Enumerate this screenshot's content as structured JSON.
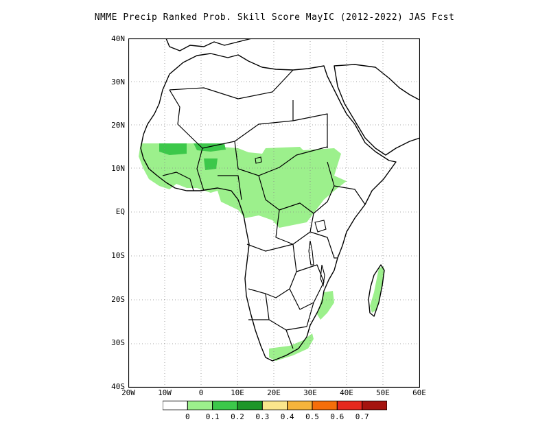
{
  "title": "NMME Precip Ranked Prob. Skill Score MayIC (2012-2022) JAS Fcst",
  "lat_labels": [
    "40N",
    "30N",
    "20N",
    "10N",
    "EQ",
    "10S",
    "20S",
    "30S",
    "40S"
  ],
  "lon_labels": [
    "20W",
    "10W",
    "0",
    "10E",
    "20E",
    "30E",
    "40E",
    "50E",
    "60E"
  ],
  "colorbar": {
    "colors": [
      "#ffffff",
      "#9cf08c",
      "#3cc84a",
      "#1e9628",
      "#fae68c",
      "#f5b43c",
      "#f56e0a",
      "#e6281e",
      "#a5140f"
    ],
    "labels": [
      "0",
      "0.1",
      "0.2",
      "0.3",
      "0.4",
      "0.5",
      "0.6",
      "0.7"
    ]
  },
  "map": {
    "lon_range": [
      -20,
      60
    ],
    "lat_range": [
      -40,
      40
    ],
    "grid_interval_deg": 10,
    "gridlines": "dotted",
    "skill_regions": [
      {
        "name": "sahel-west-africa",
        "level": "0-0.1"
      },
      {
        "name": "sahel-core",
        "level": "0.1-0.2"
      },
      {
        "name": "central-africa",
        "level": "0-0.1"
      },
      {
        "name": "ethiopia-south-sudan",
        "level": "0-0.1"
      },
      {
        "name": "south-africa",
        "level": "0-0.1"
      },
      {
        "name": "mozambique",
        "level": "0-0.1"
      },
      {
        "name": "madagascar-east",
        "level": "0-0.1"
      }
    ]
  }
}
